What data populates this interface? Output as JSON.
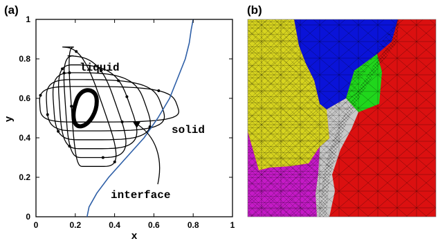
{
  "panels": {
    "a": {
      "label": "(a)",
      "chart_data": {
        "type": "line",
        "title": "",
        "xlabel": "x",
        "ylabel": "y",
        "xlim": [
          0,
          1
        ],
        "ylim": [
          0,
          1
        ],
        "xticks": [
          "0",
          "0.2",
          "0.4",
          "0.6",
          "0.8",
          "1"
        ],
        "yticks": [
          "0",
          "0.2",
          "0.4",
          "0.6",
          "0.8",
          "1"
        ],
        "grid": false,
        "annotations": [
          "liquid",
          "solid",
          "interface"
        ],
        "interface": {
          "x": [
            0.26,
            0.27,
            0.31,
            0.37,
            0.46,
            0.55,
            0.62,
            0.68,
            0.72,
            0.76,
            0.78,
            0.79,
            0.8
          ],
          "y": [
            0.0,
            0.05,
            0.12,
            0.2,
            0.3,
            0.4,
            0.5,
            0.6,
            0.7,
            0.8,
            0.88,
            0.95,
            1.0
          ]
        },
        "streamlines": [
          {
            "cx": 0.22,
            "cy": 0.56,
            "left": 0.02,
            "right": 0.72,
            "top": 0.1,
            "bottom": 0.08
          },
          {
            "cx": 0.22,
            "cy": 0.56,
            "left": 0.055,
            "right": 0.64,
            "top": 0.135,
            "bottom": 0.125
          },
          {
            "cx": 0.22,
            "cy": 0.56,
            "left": 0.09,
            "right": 0.56,
            "top": 0.17,
            "bottom": 0.17
          },
          {
            "cx": 0.22,
            "cy": 0.56,
            "left": 0.12,
            "right": 0.48,
            "top": 0.21,
            "bottom": 0.215
          },
          {
            "cx": 0.22,
            "cy": 0.56,
            "left": 0.15,
            "right": 0.41,
            "top": 0.255,
            "bottom": 0.26
          },
          {
            "cx": 0.22,
            "cy": 0.56,
            "left": 0.18,
            "right": 0.34,
            "top": 0.3,
            "bottom": 0.305
          }
        ],
        "vortex_core": {
          "x": 0.245,
          "y": 0.55
        }
      }
    },
    "b": {
      "label": "(b)",
      "colors": {
        "yellow": "#d6d31f",
        "blue": "#0a13d8",
        "red": "#db1010",
        "magenta": "#c41ac6",
        "green": "#20d61c",
        "gray": "#c8c8c8"
      }
    }
  }
}
